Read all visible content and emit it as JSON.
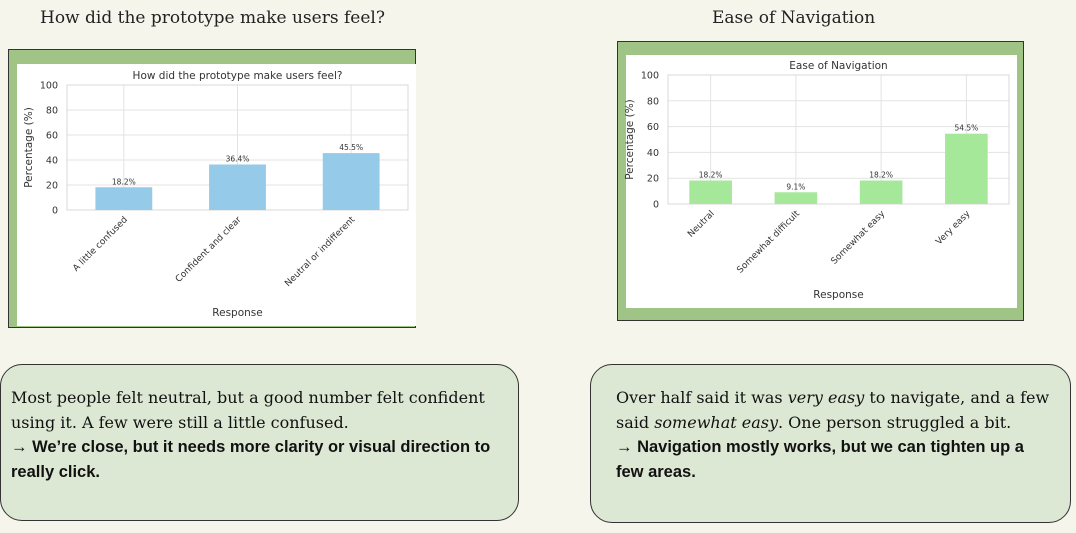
{
  "headings": {
    "left": "How did the prototype make users feel?",
    "right": "Ease of Navigation"
  },
  "chart_data": [
    {
      "type": "bar",
      "title": "How did the prototype make users feel?",
      "xlabel": "Response",
      "ylabel": "Percentage (%)",
      "ylim": [
        0,
        100
      ],
      "yticks": [
        0,
        20,
        40,
        60,
        80,
        100
      ],
      "grid": true,
      "categories": [
        "A little confused",
        "Confident and clear",
        "Neutral or indifferent"
      ],
      "values": [
        18.2,
        36.4,
        45.5
      ],
      "data_labels": [
        "18.2%",
        "36.4%",
        "45.5%"
      ],
      "color": "#95cae8"
    },
    {
      "type": "bar",
      "title": "Ease of Navigation",
      "xlabel": "Response",
      "ylabel": "Percentage (%)",
      "ylim": [
        0,
        100
      ],
      "yticks": [
        0,
        20,
        40,
        60,
        80,
        100
      ],
      "grid": true,
      "categories": [
        "Neutral",
        "Somewhat difficult",
        "Somewhat easy",
        "Very easy"
      ],
      "values": [
        18.2,
        9.1,
        18.2,
        54.5
      ],
      "data_labels": [
        "18.2%",
        "9.1%",
        "18.2%",
        "54.5%"
      ],
      "color": "#a6e899"
    }
  ],
  "cards": {
    "left": {
      "text": "Most people felt neutral, but a good number felt confident using it. A few were still a little confused.",
      "conclusion": "→ We’re close, but it needs more clarity or visual direction to really click."
    },
    "right": {
      "text_a": "Over half said it was ",
      "em_a": "very easy",
      "text_b": " to navigate, and a few said ",
      "em_b": "somewhat easy",
      "text_c": ". One person struggled a bit.",
      "conclusion": "→ Navigation mostly works, but we can tighten up a few areas."
    }
  }
}
